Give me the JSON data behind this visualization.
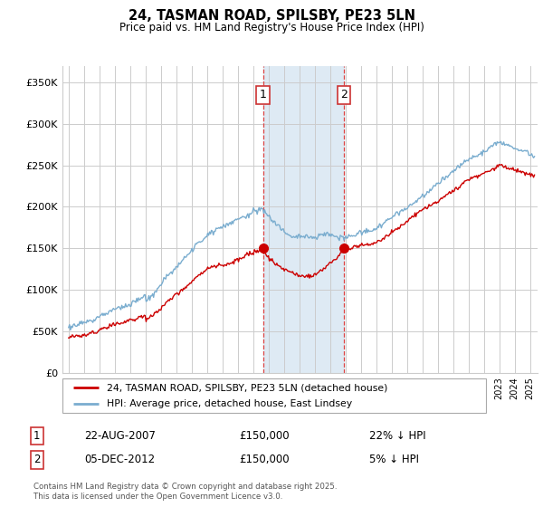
{
  "title": "24, TASMAN ROAD, SPILSBY, PE23 5LN",
  "subtitle": "Price paid vs. HM Land Registry's House Price Index (HPI)",
  "ylabel_ticks": [
    "£0",
    "£50K",
    "£100K",
    "£150K",
    "£200K",
    "£250K",
    "£300K",
    "£350K"
  ],
  "ytick_values": [
    0,
    50000,
    100000,
    150000,
    200000,
    250000,
    300000,
    350000
  ],
  "ylim": [
    0,
    370000
  ],
  "xlim_left": 1994.6,
  "xlim_right": 2025.5,
  "sale1_x": 2007.64,
  "sale1_y": 150000,
  "sale1_label": "1",
  "sale1_date": "22-AUG-2007",
  "sale1_price": "£150,000",
  "sale1_hpi": "22% ↓ HPI",
  "sale2_x": 2012.92,
  "sale2_y": 150000,
  "sale2_label": "2",
  "sale2_date": "05-DEC-2012",
  "sale2_price": "£150,000",
  "sale2_hpi": "5% ↓ HPI",
  "legend_line1": "24, TASMAN ROAD, SPILSBY, PE23 5LN (detached house)",
  "legend_line2": "HPI: Average price, detached house, East Lindsey",
  "footer": "Contains HM Land Registry data © Crown copyright and database right 2025.\nThis data is licensed under the Open Government Licence v3.0.",
  "line_color_red": "#cc0000",
  "line_color_blue": "#7aadcf",
  "bg_highlight": "#deeaf4",
  "grid_color": "#cccccc"
}
